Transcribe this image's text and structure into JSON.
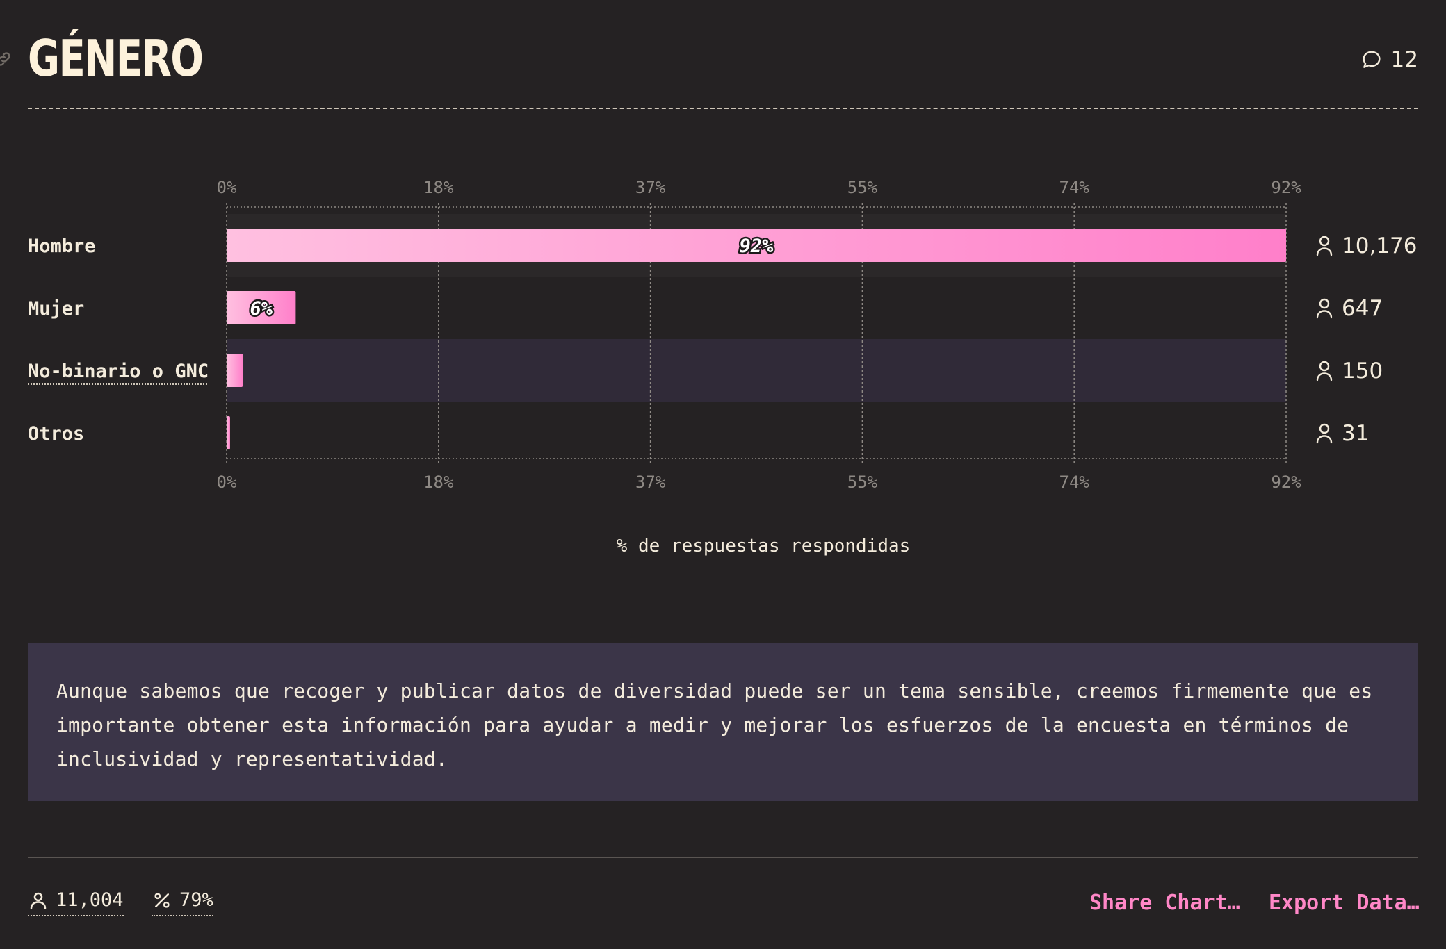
{
  "header": {
    "title": "GÉNERO",
    "comment_count": "12"
  },
  "chart_data": {
    "type": "bar",
    "orientation": "horizontal",
    "xlabel": "% de respuestas respondidas",
    "xlim": [
      0,
      92
    ],
    "x_ticks": [
      "0%",
      "18%",
      "37%",
      "55%",
      "74%",
      "92%"
    ],
    "grid": true,
    "categories": [
      "Hombre",
      "Mujer",
      "No-binario o GNC",
      "Otros"
    ],
    "values": [
      92,
      6,
      1.4,
      0.3
    ],
    "value_labels": [
      "92%",
      "6%",
      "",
      ""
    ],
    "counts": [
      "10,176",
      "647",
      "150",
      "31"
    ],
    "highlighted_category": "No-binario o GNC",
    "bar_gradient": [
      "#ffc0e0",
      "#ff7fca"
    ]
  },
  "note": {
    "text": "Aunque sabemos que recoger y publicar datos de diversidad puede ser un tema sensible, creemos firmemente que es importante obtener esta información para ayudar a medir y mejorar los esfuerzos de la encuesta en términos de inclusividad y representatividad."
  },
  "footer": {
    "respondents": "11,004",
    "percent": "79%",
    "share_label": "Share Chart…",
    "export_label": "Export Data…"
  },
  "colors": {
    "background": "#252223",
    "note_background": "#3b3548",
    "accent": "#ff87c7",
    "text": "#f4ecdc"
  }
}
